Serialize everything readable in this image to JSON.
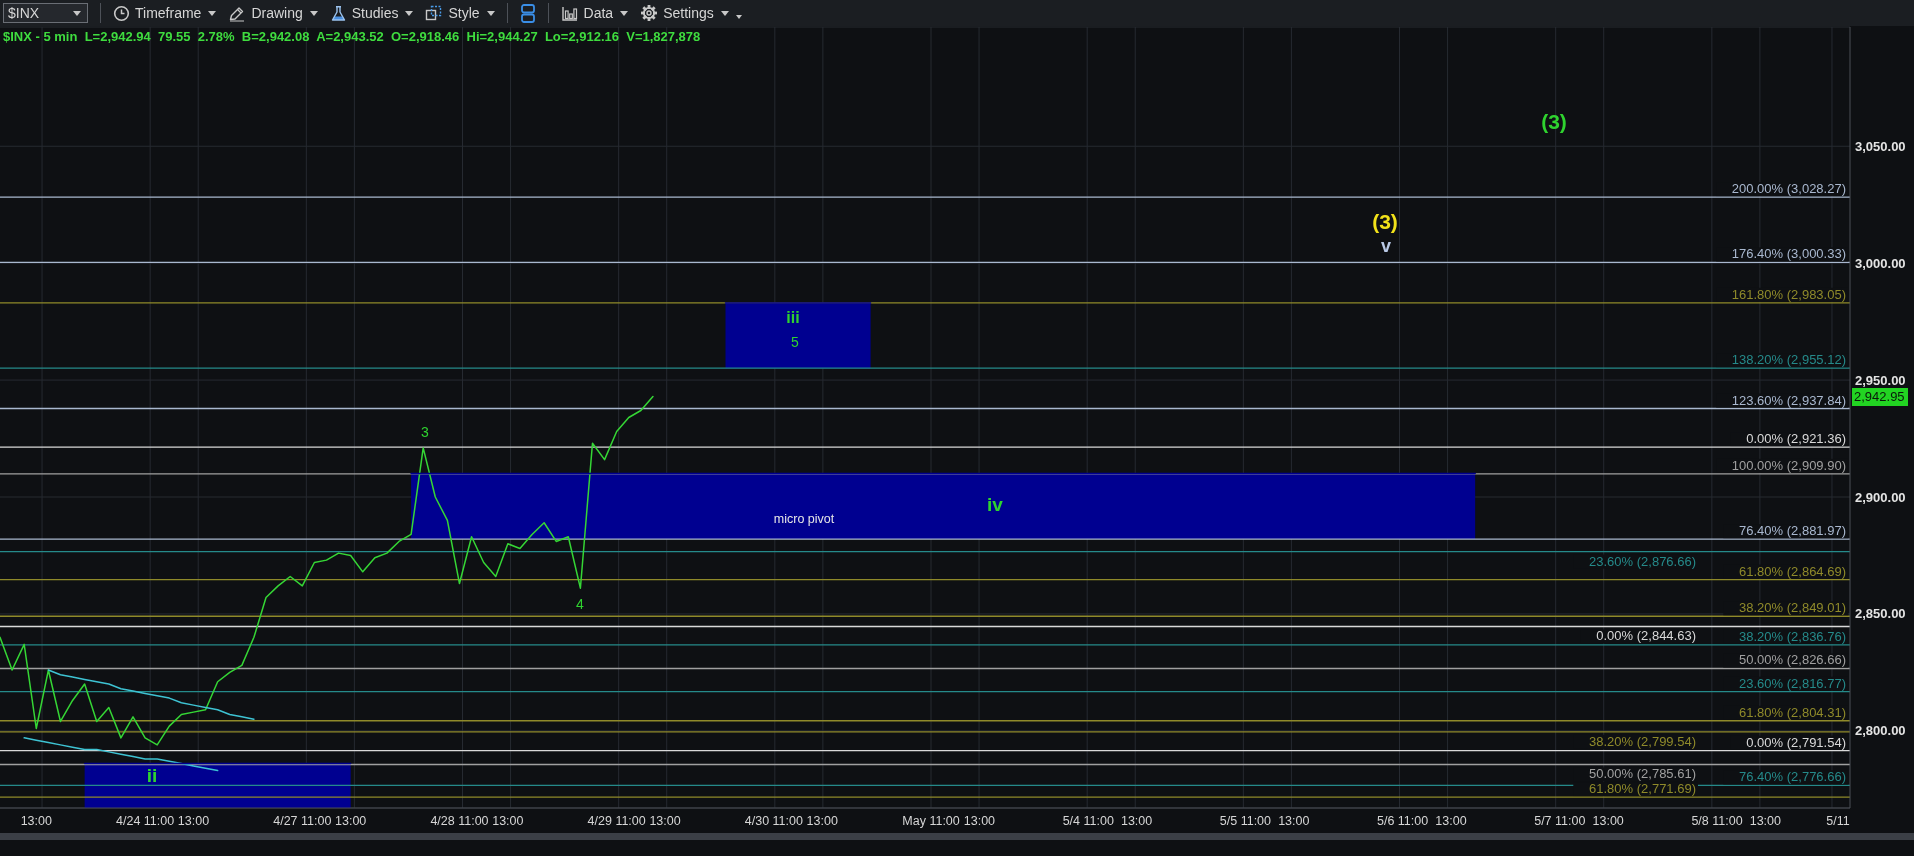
{
  "chart_data": {
    "type": "line",
    "subtitle": "$INX - 5 min  L=2,942.94  79.55  2.78%  B=2,942.08  A=2,943.52  O=2,918.46  Hi=2,944.27  Lo=2,912.16  V=1,827,878",
    "categories": [
      null,
      null,
      null,
      "13:00",
      null,
      null,
      null,
      null,
      null,
      null,
      null,
      null,
      "4/24 11:00",
      null,
      null,
      null,
      "13:00",
      null,
      null,
      null,
      null,
      null,
      null,
      null,
      null,
      "4/27 11:00",
      null,
      null,
      null,
      "13:00",
      null,
      null,
      null,
      null,
      null,
      null,
      null,
      null,
      "4/28 11:00",
      null,
      null,
      null,
      "13:00",
      null,
      null,
      null,
      null,
      null,
      null,
      null,
      null,
      "4/29 11:00",
      null,
      null,
      null,
      "13:00",
      null,
      null,
      null,
      null,
      null,
      null,
      null,
      null,
      "4/30 11:00",
      null,
      null,
      null,
      "13:00",
      null,
      null,
      null,
      null,
      null,
      null,
      null,
      null,
      "May 11:00",
      null,
      null,
      null,
      "13:00",
      null,
      null,
      null,
      null,
      null,
      null,
      null,
      null,
      "5/4 11:00",
      null,
      null,
      null,
      "13:00",
      null,
      null,
      null,
      null,
      null,
      null,
      null,
      null,
      "5/5 11:00",
      null,
      null,
      null,
      "13:00",
      null,
      null,
      null,
      null,
      null,
      null,
      null,
      null,
      "5/6 11:00",
      null,
      null,
      null,
      "13:00",
      null,
      null,
      null,
      null,
      null,
      null,
      null,
      null,
      "5/7 11:00",
      null,
      null,
      null,
      "13:00",
      null,
      null,
      null,
      null,
      null,
      null,
      null,
      null,
      "5/8 11:00",
      null,
      null,
      null,
      "13:00",
      null,
      null,
      null,
      null,
      null,
      "5/11",
      null
    ],
    "ylim": [
      2767,
      3101
    ],
    "yticks": [
      {
        "value": 2800,
        "label": "2,800.00"
      },
      {
        "value": 2850,
        "label": "2,850.00"
      },
      {
        "value": 2900,
        "label": "2,900.00"
      },
      {
        "value": 2950,
        "label": "2,950.00"
      },
      {
        "value": 3000,
        "label": "3,000.00"
      },
      {
        "value": 3050,
        "label": "3,050.00"
      }
    ],
    "grid": true,
    "series": [
      {
        "color": "#35d635",
        "values": [
          2840,
          2826,
          2837,
          2801,
          2826,
          2804,
          2813,
          2820,
          2804,
          2810,
          2797,
          2806,
          2797,
          2794,
          2802,
          2807,
          2808,
          2809,
          2821,
          2825,
          2828,
          2840,
          2857,
          2862,
          2866,
          2862,
          2872,
          2873,
          2876,
          2875,
          2868,
          2874,
          2876,
          2881,
          2884,
          2921,
          2900,
          2890,
          2863,
          2883,
          2872,
          2866,
          2880,
          2878,
          2884,
          2889,
          2881,
          2883,
          2861,
          2923,
          2916,
          2928,
          2934,
          2937,
          2943,
          null,
          null,
          null,
          null,
          null,
          null,
          null,
          null,
          null,
          null,
          null,
          null,
          null,
          null,
          null,
          null,
          null,
          null,
          null,
          null,
          null,
          null,
          null,
          null,
          null,
          null,
          null,
          null,
          null,
          null,
          null,
          null,
          null,
          null,
          null,
          null,
          null,
          null,
          null,
          null,
          null,
          null,
          null,
          null,
          null,
          null,
          null,
          null,
          null,
          null,
          null,
          null,
          null,
          null,
          null,
          null,
          null,
          null,
          null,
          null,
          null,
          null,
          null,
          null,
          null,
          null,
          null,
          null,
          null,
          null,
          null,
          null,
          null,
          null,
          null,
          null,
          null,
          null,
          null,
          null,
          null,
          null,
          null,
          null,
          null,
          null,
          null,
          null,
          null,
          null,
          null,
          null,
          null,
          null,
          null,
          null,
          null,
          null,
          null
        ]
      },
      {
        "color": "#3ec3d3",
        "values": [
          null,
          null,
          null,
          null,
          2826,
          2824,
          2823,
          2822,
          2821,
          2820,
          2818,
          2817,
          2816,
          2815,
          2814,
          2812,
          2811,
          2810,
          2809,
          2807,
          2806,
          2805,
          null,
          null,
          null,
          null,
          null,
          null,
          null,
          null,
          null,
          null,
          null,
          null,
          null,
          null,
          null,
          null,
          null,
          null,
          null,
          null,
          null,
          null,
          null,
          null,
          null,
          null,
          null,
          null,
          null,
          null,
          null,
          null,
          null,
          null,
          null,
          null,
          null,
          null,
          null,
          null,
          null,
          null,
          null,
          null,
          null,
          null,
          null,
          null,
          null,
          null,
          null,
          null,
          null,
          null,
          null,
          null,
          null,
          null,
          null,
          null,
          null,
          null,
          null,
          null,
          null,
          null,
          null,
          null,
          null,
          null,
          null,
          null,
          null,
          null,
          null,
          null,
          null,
          null,
          null,
          null,
          null,
          null,
          null,
          null,
          null,
          null,
          null,
          null,
          null,
          null,
          null,
          null,
          null,
          null,
          null,
          null,
          null,
          null,
          null,
          null,
          null,
          null,
          null,
          null,
          null,
          null,
          null,
          null,
          null,
          null,
          null,
          null,
          null,
          null,
          null,
          null,
          null,
          null,
          null,
          null,
          null,
          null,
          null,
          null,
          null,
          null,
          null,
          null,
          null,
          null,
          null,
          null
        ]
      },
      {
        "color": "#3ec3d3",
        "values": [
          null,
          null,
          2797,
          2796,
          2795,
          2794,
          2793,
          2792,
          2792,
          2791,
          2790,
          2789,
          2788,
          2788,
          2787,
          2786,
          2785,
          2784,
          2783,
          null,
          null,
          null,
          null,
          null,
          null,
          null,
          null,
          null,
          null,
          null,
          null,
          null,
          null,
          null,
          null,
          null,
          null,
          null,
          null,
          null,
          null,
          null,
          null,
          null,
          null,
          null,
          null,
          null,
          null,
          null,
          null,
          null,
          null,
          null,
          null,
          null,
          null,
          null,
          null,
          null,
          null,
          null,
          null,
          null,
          null,
          null,
          null,
          null,
          null,
          null,
          null,
          null,
          null,
          null,
          null,
          null,
          null,
          null,
          null,
          null,
          null,
          null,
          null,
          null,
          null,
          null,
          null,
          null,
          null,
          null,
          null,
          null,
          null,
          null,
          null,
          null,
          null,
          null,
          null,
          null,
          null,
          null,
          null,
          null,
          null,
          null,
          null,
          null,
          null,
          null,
          null,
          null,
          null,
          null,
          null,
          null,
          null,
          null,
          null,
          null,
          null,
          null,
          null,
          null,
          null,
          null,
          null,
          null,
          null,
          null,
          null,
          null,
          null,
          null,
          null,
          null,
          null,
          null,
          null,
          null,
          null,
          null,
          null,
          null,
          null,
          null,
          null,
          null,
          null,
          null,
          null,
          null,
          null,
          null
        ]
      },
      {
        "color": "#000090",
        "values": [
          null,
          null,
          null,
          null,
          null,
          null,
          null,
          2786,
          2786,
          2786,
          2786,
          2786,
          2786,
          2786,
          2786,
          2786,
          2786,
          2786,
          2786,
          2786,
          2786,
          2786,
          2786,
          2786,
          2786,
          2786,
          2786,
          2786,
          2786,
          2786,
          null,
          null,
          null,
          null,
          null,
          null,
          null,
          null,
          null,
          null,
          null,
          null,
          null,
          null,
          null,
          null,
          null,
          null,
          null,
          null,
          null,
          null,
          null,
          null,
          null,
          null,
          null,
          null,
          null,
          null,
          null,
          null,
          null,
          null,
          null,
          null,
          null,
          null,
          null,
          null,
          null,
          null,
          null,
          null,
          null,
          null,
          null,
          null,
          null,
          null,
          null,
          null,
          null,
          null,
          null,
          null,
          null,
          null,
          null,
          null,
          null,
          null,
          null,
          null,
          null,
          null,
          null,
          null,
          null,
          null,
          null,
          null,
          null,
          null,
          null,
          null,
          null,
          null,
          null,
          null,
          null,
          null,
          null,
          null,
          null,
          null,
          null,
          null,
          null,
          null,
          null,
          null,
          null,
          null,
          null,
          null,
          null,
          null,
          null,
          null,
          null,
          null,
          null,
          null,
          null,
          null,
          null,
          null,
          null,
          null,
          null,
          null,
          null,
          null,
          null,
          null,
          null,
          null,
          null,
          null,
          null,
          null,
          null,
          null
        ],
        "lower": [
          null,
          null,
          null,
          null,
          null,
          null,
          null,
          2767,
          2767,
          2767,
          2767,
          2767,
          2767,
          2767,
          2767,
          2767,
          2767,
          2767,
          2767,
          2767,
          2767,
          2767,
          2767,
          2767,
          2767,
          2767,
          2767,
          2767,
          2767,
          2767,
          null,
          null,
          null,
          null,
          null,
          null,
          null,
          null,
          null,
          null,
          null,
          null,
          null,
          null,
          null,
          null,
          null,
          null,
          null,
          null,
          null,
          null,
          null,
          null,
          null,
          null,
          null,
          null,
          null,
          null,
          null,
          null,
          null,
          null,
          null,
          null,
          null,
          null,
          null,
          null,
          null,
          null,
          null,
          null,
          null,
          null,
          null,
          null,
          null,
          null,
          null,
          null,
          null,
          null,
          null,
          null,
          null,
          null,
          null,
          null,
          null,
          null,
          null,
          null,
          null,
          null,
          null,
          null,
          null,
          null,
          null,
          null,
          null,
          null,
          null,
          null,
          null,
          null,
          null,
          null,
          null,
          null,
          null,
          null,
          null,
          null,
          null,
          null,
          null,
          null,
          null,
          null,
          null,
          null,
          null,
          null,
          null,
          null,
          null,
          null,
          null,
          null,
          null,
          null,
          null,
          null,
          null,
          null,
          null,
          null,
          null,
          null,
          null,
          null,
          null,
          null,
          null,
          null,
          null,
          null,
          null,
          null,
          null,
          null
        ],
        "upper": [
          null,
          null,
          null,
          null,
          null,
          null,
          null,
          2786,
          2786,
          2786,
          2786,
          2786,
          2786,
          2786,
          2786,
          2786,
          2786,
          2786,
          2786,
          2786,
          2786,
          2786,
          2786,
          2786,
          2786,
          2786,
          2786,
          2786,
          2786,
          2786,
          null,
          null,
          null,
          null,
          null,
          null,
          null,
          null,
          null,
          null,
          null,
          null,
          null,
          null,
          null,
          null,
          null,
          null,
          null,
          null,
          null,
          null,
          null,
          null,
          null,
          null,
          null,
          null,
          null,
          null,
          null,
          null,
          null,
          null,
          null,
          null,
          null,
          null,
          null,
          null,
          null,
          null,
          null,
          null,
          null,
          null,
          null,
          null,
          null,
          null,
          null,
          null,
          null,
          null,
          null,
          null,
          null,
          null,
          null,
          null,
          null,
          null,
          null,
          null,
          null,
          null,
          null,
          null,
          null,
          null,
          null,
          null,
          null,
          null,
          null,
          null,
          null,
          null,
          null,
          null,
          null,
          null,
          null,
          null,
          null,
          null,
          null,
          null,
          null,
          null,
          null,
          null,
          null,
          null,
          null,
          null,
          null,
          null,
          null,
          null,
          null,
          null,
          null,
          null,
          null,
          null,
          null,
          null,
          null,
          null,
          null,
          null,
          null,
          null,
          null,
          null,
          null,
          null,
          null,
          null,
          null,
          null,
          null,
          null
        ]
      },
      {
        "color": "#000090",
        "values": [
          null,
          null,
          null,
          null,
          null,
          null,
          null,
          null,
          null,
          null,
          null,
          null,
          null,
          null,
          null,
          null,
          null,
          null,
          null,
          null,
          null,
          null,
          null,
          null,
          null,
          null,
          null,
          null,
          null,
          null,
          null,
          null,
          null,
          null,
          2910,
          2910,
          2910,
          2910,
          2910,
          2910,
          2910,
          2910,
          2910,
          2910,
          2910,
          2910,
          2910,
          2910,
          2910,
          2910,
          2910,
          2910,
          2910,
          2910,
          2910,
          2910,
          2910,
          2910,
          2910,
          2910,
          2910,
          2910,
          2910,
          2910,
          2910,
          2910,
          2910,
          2910,
          2910,
          2910,
          2910,
          2910,
          2910,
          2910,
          2910,
          2910,
          2910,
          2910,
          2910,
          2910,
          2910,
          2910,
          2910,
          2910,
          2910,
          2910,
          2910,
          2910,
          2910,
          2910,
          2910,
          2910,
          2910,
          2910,
          2910,
          2910,
          2910,
          2910,
          2910,
          2910,
          2910,
          2910,
          2910,
          2910,
          2910,
          2910,
          2910,
          2910,
          2910,
          2910,
          2910,
          2910,
          2910,
          2910,
          2910,
          2910,
          2910,
          2910,
          2910,
          2910,
          2910,
          2910,
          2910,
          null,
          null,
          null,
          null,
          null,
          null,
          null,
          null,
          null,
          null,
          null,
          null,
          null,
          null,
          null,
          null,
          null,
          null,
          null,
          null,
          null,
          null,
          null,
          null,
          null,
          null,
          null,
          null,
          null,
          null,
          null
        ],
        "lower": [
          null,
          null,
          null,
          null,
          null,
          null,
          null,
          null,
          null,
          null,
          null,
          null,
          null,
          null,
          null,
          null,
          null,
          null,
          null,
          null,
          null,
          null,
          null,
          null,
          null,
          null,
          null,
          null,
          null,
          null,
          null,
          null,
          null,
          null,
          2882,
          2882,
          2882,
          2882,
          2882,
          2882,
          2882,
          2882,
          2882,
          2882,
          2882,
          2882,
          2882,
          2882,
          2882,
          2882,
          2882,
          2882,
          2882,
          2882,
          2882,
          2882,
          2882,
          2882,
          2882,
          2882,
          2882,
          2882,
          2882,
          2882,
          2882,
          2882,
          2882,
          2882,
          2882,
          2882,
          2882,
          2882,
          2882,
          2882,
          2882,
          2882,
          2882,
          2882,
          2882,
          2882,
          2882,
          2882,
          2882,
          2882,
          2882,
          2882,
          2882,
          2882,
          2882,
          2882,
          2882,
          2882,
          2882,
          2882,
          2882,
          2882,
          2882,
          2882,
          2882,
          2882,
          2882,
          2882,
          2882,
          2882,
          2882,
          2882,
          2882,
          2882,
          2882,
          2882,
          2882,
          2882,
          2882,
          2882,
          2882,
          2882,
          2882,
          2882,
          2882,
          2882,
          2882,
          2882,
          2882,
          null,
          null,
          null,
          null,
          null,
          null,
          null,
          null,
          null,
          null,
          null,
          null,
          null,
          null,
          null,
          null,
          null,
          null,
          null,
          null,
          null,
          null,
          null,
          null,
          null,
          null,
          null,
          null,
          null,
          null,
          null
        ],
        "upper": [
          null,
          null,
          null,
          null,
          null,
          null,
          null,
          null,
          null,
          null,
          null,
          null,
          null,
          null,
          null,
          null,
          null,
          null,
          null,
          null,
          null,
          null,
          null,
          null,
          null,
          null,
          null,
          null,
          null,
          null,
          null,
          null,
          null,
          null,
          2910,
          2910,
          2910,
          2910,
          2910,
          2910,
          2910,
          2910,
          2910,
          2910,
          2910,
          2910,
          2910,
          2910,
          2910,
          2910,
          2910,
          2910,
          2910,
          2910,
          2910,
          2910,
          2910,
          2910,
          2910,
          2910,
          2910,
          2910,
          2910,
          2910,
          2910,
          2910,
          2910,
          2910,
          2910,
          2910,
          2910,
          2910,
          2910,
          2910,
          2910,
          2910,
          2910,
          2910,
          2910,
          2910,
          2910,
          2910,
          2910,
          2910,
          2910,
          2910,
          2910,
          2910,
          2910,
          2910,
          2910,
          2910,
          2910,
          2910,
          2910,
          2910,
          2910,
          2910,
          2910,
          2910,
          2910,
          2910,
          2910,
          2910,
          2910,
          2910,
          2910,
          2910,
          2910,
          2910,
          2910,
          2910,
          2910,
          2910,
          2910,
          2910,
          2910,
          2910,
          2910,
          2910,
          2910,
          2910,
          2910,
          null,
          null,
          null,
          null,
          null,
          null,
          null,
          null,
          null,
          null,
          null,
          null,
          null,
          null,
          null,
          null,
          null,
          null,
          null,
          null,
          null,
          null,
          null,
          null,
          null,
          null,
          null,
          null,
          null,
          null,
          null
        ]
      },
      {
        "color": "#000090",
        "values": [
          null,
          null,
          null,
          null,
          null,
          null,
          null,
          null,
          null,
          null,
          null,
          null,
          null,
          null,
          null,
          null,
          null,
          null,
          null,
          null,
          null,
          null,
          null,
          null,
          null,
          null,
          null,
          null,
          null,
          null,
          null,
          null,
          null,
          null,
          null,
          null,
          null,
          null,
          null,
          null,
          null,
          null,
          null,
          null,
          null,
          null,
          null,
          null,
          null,
          null,
          null,
          null,
          null,
          null,
          null,
          null,
          null,
          null,
          null,
          null,
          2983,
          2983,
          2983,
          2983,
          2983,
          2983,
          2983,
          2983,
          2983,
          2983,
          2983,
          2983,
          2983,
          null,
          null,
          null,
          null,
          null,
          null,
          null,
          null,
          null,
          null,
          null,
          null,
          null,
          null,
          null,
          null,
          null,
          null,
          null,
          null,
          null,
          null,
          null,
          null,
          null,
          null,
          null,
          null,
          null,
          null,
          null,
          null,
          null,
          null,
          null,
          null,
          null,
          null,
          null,
          null,
          null,
          null,
          null,
          null,
          null,
          null,
          null,
          null,
          null,
          null,
          null,
          null,
          null,
          null,
          null,
          null,
          null,
          null,
          null,
          null,
          null,
          null,
          null,
          null,
          null,
          null,
          null,
          null,
          null,
          null,
          null,
          null,
          null,
          null,
          null,
          null,
          null,
          null,
          null,
          null,
          null
        ],
        "lower": [
          null,
          null,
          null,
          null,
          null,
          null,
          null,
          null,
          null,
          null,
          null,
          null,
          null,
          null,
          null,
          null,
          null,
          null,
          null,
          null,
          null,
          null,
          null,
          null,
          null,
          null,
          null,
          null,
          null,
          null,
          null,
          null,
          null,
          null,
          null,
          null,
          null,
          null,
          null,
          null,
          null,
          null,
          null,
          null,
          null,
          null,
          null,
          null,
          null,
          null,
          null,
          null,
          null,
          null,
          null,
          null,
          null,
          null,
          null,
          null,
          2955,
          2955,
          2955,
          2955,
          2955,
          2955,
          2955,
          2955,
          2955,
          2955,
          2955,
          2955,
          2955,
          null,
          null,
          null,
          null,
          null,
          null,
          null,
          null,
          null,
          null,
          null,
          null,
          null,
          null,
          null,
          null,
          null,
          null,
          null,
          null,
          null,
          null,
          null,
          null,
          null,
          null,
          null,
          null,
          null,
          null,
          null,
          null,
          null,
          null,
          null,
          null,
          null,
          null,
          null,
          null,
          null,
          null,
          null,
          null,
          null,
          null,
          null,
          null,
          null,
          null,
          null,
          null,
          null,
          null,
          null,
          null,
          null,
          null,
          null,
          null,
          null,
          null,
          null,
          null,
          null,
          null,
          null,
          null,
          null,
          null,
          null,
          null,
          null,
          null,
          null,
          null,
          null,
          null,
          null,
          null,
          null
        ],
        "upper": [
          null,
          null,
          null,
          null,
          null,
          null,
          null,
          null,
          null,
          null,
          null,
          null,
          null,
          null,
          null,
          null,
          null,
          null,
          null,
          null,
          null,
          null,
          null,
          null,
          null,
          null,
          null,
          null,
          null,
          null,
          null,
          null,
          null,
          null,
          null,
          null,
          null,
          null,
          null,
          null,
          null,
          null,
          null,
          null,
          null,
          null,
          null,
          null,
          null,
          null,
          null,
          null,
          null,
          null,
          null,
          null,
          null,
          null,
          null,
          null,
          2983,
          2983,
          2983,
          2983,
          2983,
          2983,
          2983,
          2983,
          2983,
          2983,
          2983,
          2983,
          2983,
          null,
          null,
          null,
          null,
          null,
          null,
          null,
          null,
          null,
          null,
          null,
          null,
          null,
          null,
          null,
          null,
          null,
          null,
          null,
          null,
          null,
          null,
          null,
          null,
          null,
          null,
          null,
          null,
          null,
          null,
          null,
          null,
          null,
          null,
          null,
          null,
          null,
          null,
          null,
          null,
          null,
          null,
          null,
          null,
          null,
          null,
          null,
          null,
          null,
          null,
          null,
          null,
          null,
          null,
          null,
          null,
          null,
          null,
          null,
          null,
          null,
          null,
          null,
          null,
          null,
          null,
          null,
          null,
          null,
          null,
          null,
          null,
          null,
          null,
          null,
          null,
          null,
          null,
          null,
          null,
          null
        ]
      }
    ],
    "ref_lines": [
      {
        "axis": "y",
        "value": 3028.27,
        "label": "200.00% (3,028.27)",
        "color": "#a9b8cf"
      },
      {
        "axis": "y",
        "value": 3000.33,
        "label": "176.40% (3,000.33)",
        "color": "#a9b8cf"
      },
      {
        "axis": "y",
        "value": 2983.05,
        "label": "161.80% (2,983.05)",
        "color": "#8f8a2a"
      },
      {
        "axis": "y",
        "value": 2955.12,
        "label": "138.20% (2,955.12)",
        "color": "#258a8a"
      },
      {
        "axis": "y",
        "value": 2937.84,
        "label": "123.60% (2,937.84)",
        "color": "#a9b8cf"
      },
      {
        "axis": "y",
        "value": 2921.36,
        "label": "0.00% (2,921.36)",
        "color": "#d9d9d9"
      },
      {
        "axis": "y",
        "value": 2909.9,
        "label": "100.00% (2,909.90)",
        "color": "#a0a0a0"
      },
      {
        "axis": "y",
        "value": 2881.97,
        "label": "76.40% (2,881.97)",
        "color": "#a9b8cf"
      },
      {
        "axis": "y",
        "value": 2876.66,
        "label": "23.60% (2,876.66)",
        "color": "#258a8a"
      },
      {
        "axis": "y",
        "value": 2864.69,
        "label": "61.80% (2,864.69)",
        "color": "#8f8a2a"
      },
      {
        "axis": "y",
        "value": 2849.01,
        "label": "38.20% (2,849.01)",
        "color": "#8f8a2a"
      },
      {
        "axis": "y",
        "value": 2844.63,
        "label": "0.00% (2,844.63)",
        "color": "#d9d9d9"
      },
      {
        "axis": "y",
        "value": 2836.76,
        "label": "38.20% (2,836.76)",
        "color": "#258a8a"
      },
      {
        "axis": "y",
        "value": 2826.66,
        "label": "50.00% (2,826.66)",
        "color": "#a0a0a0"
      },
      {
        "axis": "y",
        "value": 2816.77,
        "label": "23.60% (2,816.77)",
        "color": "#258a8a"
      },
      {
        "axis": "y",
        "value": 2804.31,
        "label": "61.80% (2,804.31)",
        "color": "#8f8a2a"
      },
      {
        "axis": "y",
        "value": 2799.54,
        "label": "38.20% (2,799.54)",
        "color": "#8f8a2a"
      },
      {
        "axis": "y",
        "value": 2791.54,
        "label": "0.00% (2,791.54)",
        "color": "#d9d9d9"
      },
      {
        "axis": "y",
        "value": 2785.61,
        "label": "50.00% (2,785.61)",
        "color": "#a0a0a0"
      },
      {
        "axis": "y",
        "value": 2776.66,
        "label": "76.40% (2,776.66)",
        "color": "#258a8a"
      },
      {
        "axis": "y",
        "value": 2771.69,
        "label": "61.80% (2,771.69)",
        "color": "#8f8a2a"
      }
    ],
    "annotations": [
      "$INX",
      "Timeframe",
      "Drawing",
      "Studies",
      "Style",
      "Data",
      "Settings",
      "3",
      "4",
      "ii",
      "iii",
      "5",
      "micro pivot",
      "iv",
      "(3)",
      "v",
      "(3)",
      "2,942.95"
    ]
  }
}
